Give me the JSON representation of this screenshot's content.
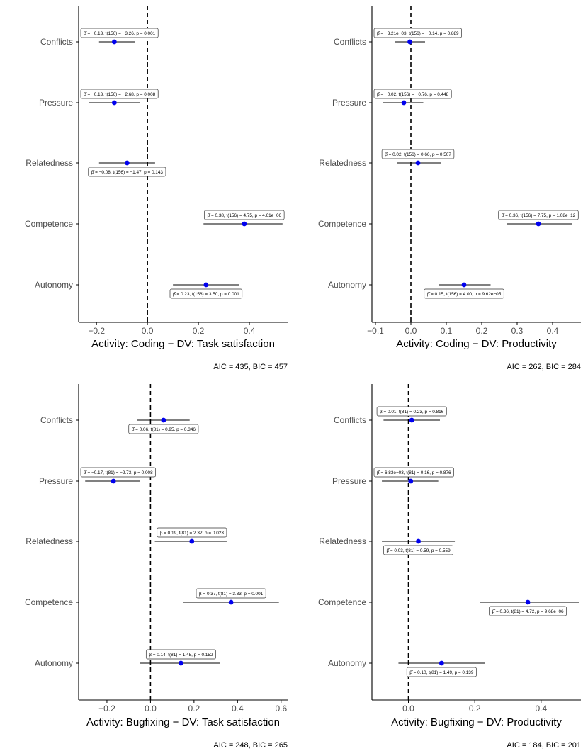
{
  "chart_data": [
    {
      "type": "forest",
      "categories": [
        "Conflicts",
        "Pressure",
        "Relatedness",
        "Competence",
        "Autonomy"
      ],
      "estimates": [
        -0.13,
        -0.13,
        -0.08,
        0.38,
        0.23
      ],
      "ci_low": [
        -0.19,
        -0.23,
        -0.19,
        0.22,
        0.1
      ],
      "ci_high": [
        -0.05,
        -0.03,
        0.03,
        0.53,
        0.36
      ],
      "annotations": [
        "β̂ = −0.13, t(156) = −3.26, p = 0.001",
        "β̂ = −0.13, t(156) = −2.68, p = 0.008",
        "β̂ = −0.08, t(156) = −1.47, p = 0.143",
        "β̂ = 0.38, t(156) = 4.75, p = 4.61e−06",
        "β̂ = 0.23, t(156) = 3.50, p = 0.001"
      ],
      "annotation_side": [
        "above",
        "above",
        "below",
        "above",
        "below"
      ],
      "xlim": [
        -0.27,
        0.55
      ],
      "xticks": [
        -0.2,
        0.0,
        0.2,
        0.4
      ],
      "xtick_labels": [
        "−0.2",
        "0.0",
        "0.2",
        "0.4"
      ],
      "xlabel": "Activity: Coding − DV: Task satisfaction",
      "fit_stats": "AIC = 435, BIC = 457"
    },
    {
      "type": "forest",
      "categories": [
        "Conflicts",
        "Pressure",
        "Relatedness",
        "Competence",
        "Autonomy"
      ],
      "estimates": [
        -0.003,
        -0.02,
        0.02,
        0.36,
        0.15
      ],
      "ci_low": [
        -0.045,
        -0.08,
        -0.04,
        0.27,
        0.08
      ],
      "ci_high": [
        0.04,
        0.035,
        0.085,
        0.455,
        0.225
      ],
      "annotations": [
        "β̂ = −3.21e−03, t(156) = −0.14, p = 0.889",
        "β̂ = −0.02, t(156) = −0.76, p = 0.448",
        "β̂ = 0.02, t(156) = 0.66, p = 0.507",
        "β̂ = 0.36, t(156) = 7.75, p = 1.08e−12",
        "β̂ = 0.15, t(156) = 4.00, p = 9.62e−05"
      ],
      "annotation_side": [
        "above",
        "above",
        "above",
        "above",
        "below"
      ],
      "xlim": [
        -0.11,
        0.48
      ],
      "xticks": [
        -0.1,
        0.0,
        0.1,
        0.2,
        0.3,
        0.4
      ],
      "xtick_labels": [
        "−0.1",
        "0.0",
        "0.1",
        "0.2",
        "0.3",
        "0.4"
      ],
      "xlabel": "Activity: Coding − DV: Productivity",
      "fit_stats": "AIC = 262, BIC = 284"
    },
    {
      "type": "forest",
      "categories": [
        "Conflicts",
        "Pressure",
        "Relatedness",
        "Competence",
        "Autonomy"
      ],
      "estimates": [
        0.06,
        -0.17,
        0.19,
        0.37,
        0.14
      ],
      "ci_low": [
        -0.06,
        -0.3,
        0.02,
        0.15,
        -0.05
      ],
      "ci_high": [
        0.18,
        -0.05,
        0.35,
        0.59,
        0.32
      ],
      "annotations": [
        "β̂ = 0.06, t(81) = 0.95, p = 0.346",
        "β̂ = −0.17, t(81) = −2.73, p = 0.008",
        "β̂ = 0.19, t(81) = 2.32, p = 0.023",
        "β̂ = 0.37, t(81) = 3.33, p = 0.001",
        "β̂ = 0.14, t(81) = 1.45, p = 0.152"
      ],
      "annotation_side": [
        "below",
        "above",
        "above",
        "above",
        "above"
      ],
      "xlim": [
        -0.33,
        0.63
      ],
      "xticks": [
        -0.2,
        0.0,
        0.2,
        0.4,
        0.6
      ],
      "xtick_labels": [
        "−0.2",
        "0.0",
        "0.2",
        "0.4",
        "0.6"
      ],
      "xlabel": "Activity: Bugfixing − DV: Task satisfaction",
      "fit_stats": "AIC = 248, BIC = 265"
    },
    {
      "type": "forest",
      "categories": [
        "Conflicts",
        "Pressure",
        "Relatedness",
        "Competence",
        "Autonomy"
      ],
      "estimates": [
        0.01,
        0.007,
        0.03,
        0.36,
        0.1
      ],
      "ci_low": [
        -0.075,
        -0.08,
        -0.08,
        0.215,
        -0.03
      ],
      "ci_high": [
        0.095,
        0.09,
        0.14,
        0.515,
        0.23
      ],
      "annotations": [
        "β̂ = 0.01, t(81) = 0.23, p = 0.816",
        "β̂ = 6.83e−03, t(81) = 0.16, p = 0.876",
        "β̂ = 0.03, t(81) = 0.59, p = 0.559",
        "β̂ = 0.36, t(81) = 4.72, p = 9.68e−06",
        "β̂ = 0.10, t(81) = 1.49, p = 0.139"
      ],
      "annotation_side": [
        "above",
        "above",
        "below",
        "below",
        "below"
      ],
      "xlim": [
        -0.11,
        0.52
      ],
      "xticks": [
        0.0,
        0.2,
        0.4
      ],
      "xtick_labels": [
        "0.0",
        "0.2",
        "0.4"
      ],
      "xlabel": "Activity: Bugfixing − DV: Productivity",
      "fit_stats": "AIC = 184, BIC = 201"
    }
  ],
  "colors": {
    "point": "#0000ee",
    "axis": "#000000",
    "tick_text": "#4d4d4d",
    "ci_line": "#000000"
  }
}
